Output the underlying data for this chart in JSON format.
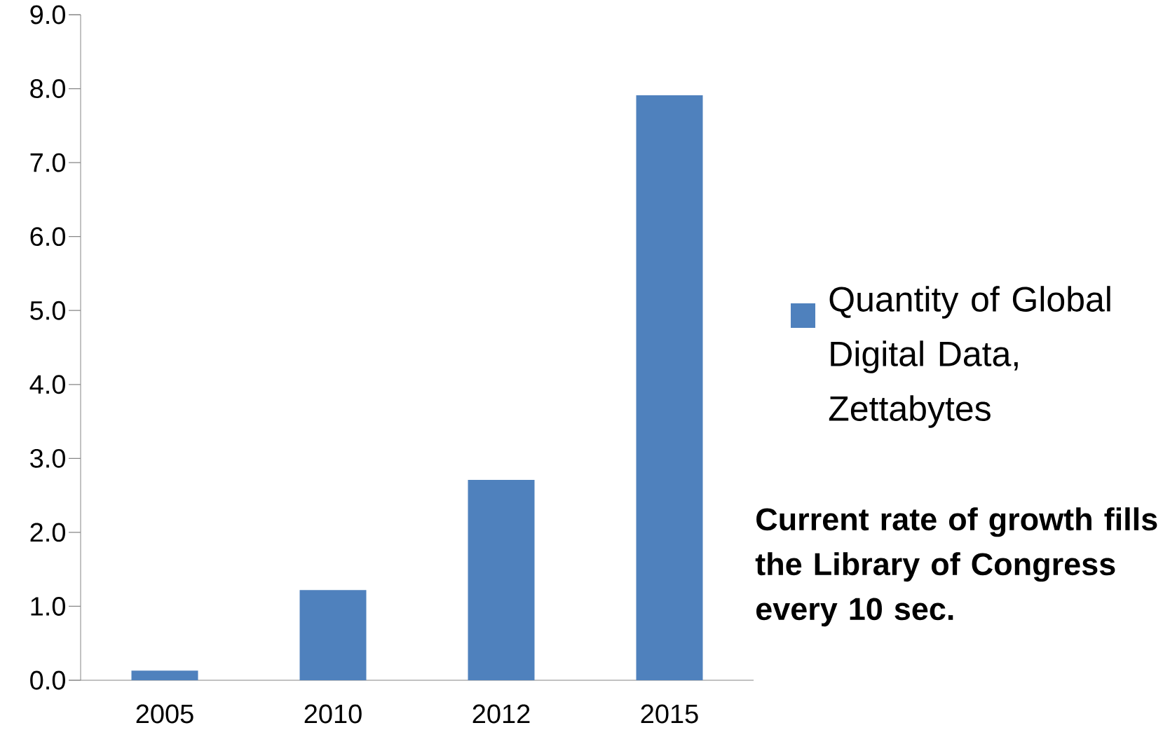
{
  "chart_data": {
    "type": "bar",
    "categories": [
      "2005",
      "2010",
      "2012",
      "2015"
    ],
    "series": [
      {
        "name": "Quantity of Global Digital Data, Zettabytes",
        "color": "#4f81bd",
        "values": [
          0.13,
          1.22,
          2.71,
          7.91
        ]
      }
    ],
    "ylim": [
      0,
      9
    ],
    "yticks": [
      {
        "value": 0,
        "label": "0.0"
      },
      {
        "value": 1,
        "label": "1.0"
      },
      {
        "value": 2,
        "label": "2.0"
      },
      {
        "value": 3,
        "label": "3.0"
      },
      {
        "value": 4,
        "label": "4.0"
      },
      {
        "value": 5,
        "label": "5.0"
      },
      {
        "value": 6,
        "label": "6.0"
      },
      {
        "value": 7,
        "label": "7.0"
      },
      {
        "value": 8,
        "label": "8.0"
      },
      {
        "value": 9,
        "label": "9.0"
      }
    ],
    "grid": false,
    "legend": "right",
    "annotations": [
      "Current rate of growth fills the Library of Congress every 10 sec."
    ]
  }
}
